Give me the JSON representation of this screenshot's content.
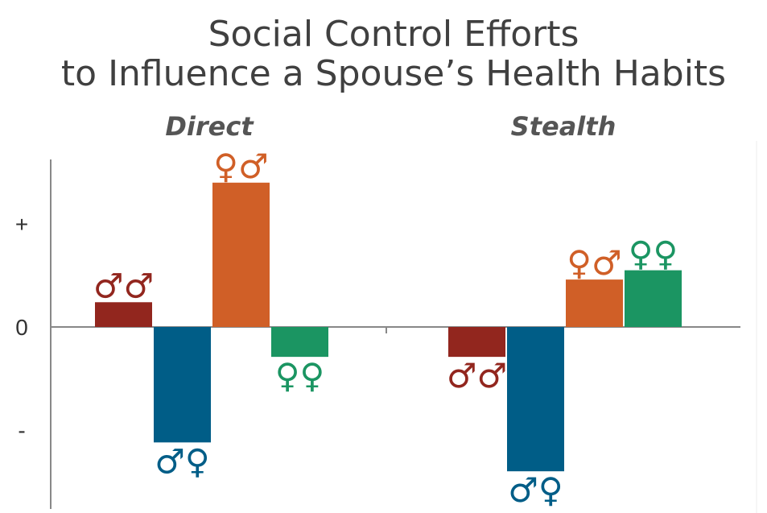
{
  "colors": {
    "male_male": "#92261e",
    "male_female": "#005d87",
    "female_male": "#d05f27",
    "female_female": "#1b9562",
    "axis": "#888888",
    "text": "#404040"
  },
  "chart_data": {
    "type": "bar",
    "title_lines": [
      "Social Control Efforts",
      "to Influence a Spouse’s Health Habits"
    ],
    "groups": [
      "Direct",
      "Stealth"
    ],
    "y_tick_labels": [
      "+",
      "0",
      "-"
    ],
    "y_ticks": [
      1,
      0,
      -1
    ],
    "ylim": [
      -1.7,
      1.65
    ],
    "series": [
      {
        "key": "male_male",
        "symbols": "♂♂",
        "color": "#92261e",
        "values": [
          0.24,
          -0.29
        ]
      },
      {
        "key": "male_female",
        "symbols": "♂♀",
        "color": "#005d87",
        "values": [
          -1.12,
          -1.4
        ]
      },
      {
        "key": "female_male",
        "symbols": "♀♂",
        "color": "#d05f27",
        "values": [
          1.4,
          0.46
        ]
      },
      {
        "key": "female_female",
        "symbols": "♀♀",
        "color": "#1b9562",
        "values": [
          -0.29,
          0.55
        ]
      }
    ],
    "legend": "none",
    "grid": false
  }
}
